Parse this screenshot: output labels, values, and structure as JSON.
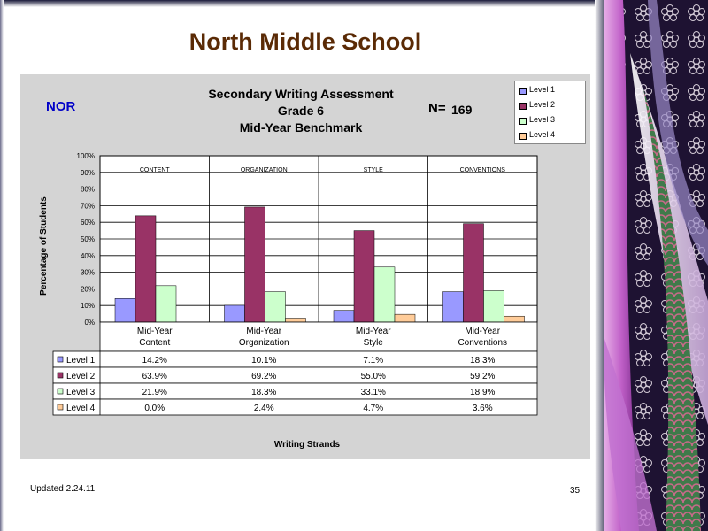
{
  "page": {
    "title": "North Middle School",
    "updated": "Updated  2.24.11",
    "page_number": "35"
  },
  "chart_header": {
    "school_code": "NOR",
    "title_lines": [
      "Secondary Writing Assessment",
      "Grade 6",
      "Mid-Year Benchmark"
    ],
    "n_label": "N=",
    "n_value": "169"
  },
  "colors": {
    "level1": "#9999ff",
    "level2": "#993366",
    "level3": "#ccffcc",
    "level4": "#ffcc99"
  },
  "chart_data": {
    "type": "bar",
    "title": "Secondary Writing Assessment Grade 6 Mid-Year Benchmark",
    "ylabel": "Percentage of Students",
    "xlabel": "Writing Strands",
    "ylim": [
      0,
      100
    ],
    "yticks": [
      "0%",
      "10%",
      "20%",
      "30%",
      "40%",
      "50%",
      "60%",
      "70%",
      "80%",
      "90%",
      "100%"
    ],
    "grid": true,
    "legend_position": "top-right",
    "group_headers": [
      "CONTENT",
      "ORGANIZATION",
      "STYLE",
      "CONVENTIONS"
    ],
    "categories": [
      "Mid-Year Content",
      "Mid-Year Organization",
      "Mid-Year Style",
      "Mid-Year Conventions"
    ],
    "category_lines": [
      [
        "Mid-Year",
        "Content"
      ],
      [
        "Mid-Year",
        "Organization"
      ],
      [
        "Mid-Year",
        "Style"
      ],
      [
        "Mid-Year",
        "Conventions"
      ]
    ],
    "series": [
      {
        "name": "Level 1",
        "values": [
          14.2,
          10.1,
          7.1,
          18.3
        ],
        "labels": [
          "14.2%",
          "10.1%",
          "7.1%",
          "18.3%"
        ],
        "color": "#9999ff"
      },
      {
        "name": "Level 2",
        "values": [
          63.9,
          69.2,
          55.0,
          59.2
        ],
        "labels": [
          "63.9%",
          "69.2%",
          "55.0%",
          "59.2%"
        ],
        "color": "#993366"
      },
      {
        "name": "Level 3",
        "values": [
          21.9,
          18.3,
          33.1,
          18.9
        ],
        "labels": [
          "21.9%",
          "18.3%",
          "33.1%",
          "18.9%"
        ],
        "color": "#ccffcc"
      },
      {
        "name": "Level 4",
        "values": [
          0.0,
          2.4,
          4.7,
          3.6
        ],
        "labels": [
          "0.0%",
          "2.4%",
          "4.7%",
          "3.6%"
        ],
        "color": "#ffcc99"
      }
    ]
  }
}
